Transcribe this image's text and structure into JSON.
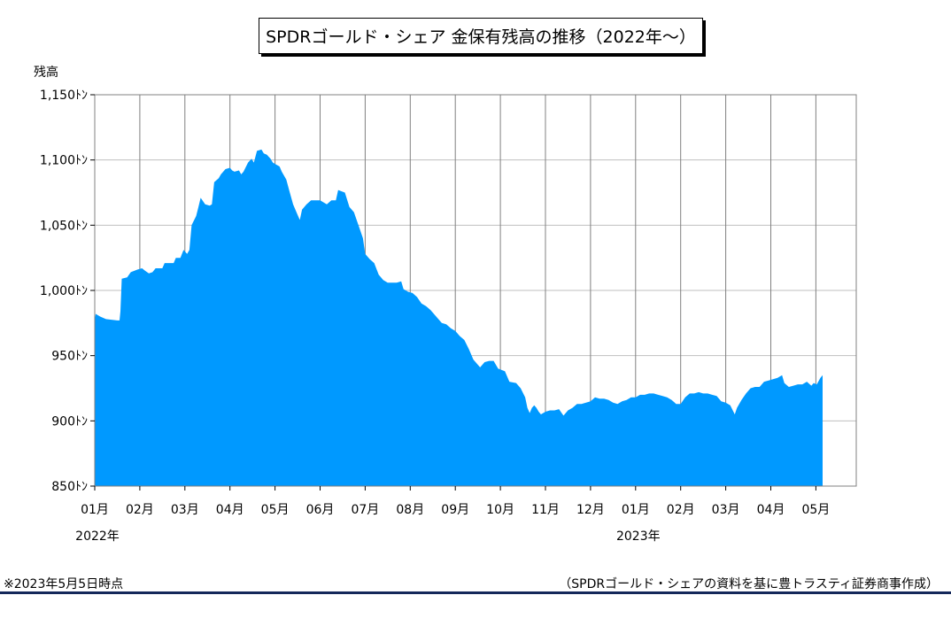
{
  "title": "SPDRゴールド・シェア 金保有残高の推移（2022年～）",
  "footnote": "※2023年5月5日時点",
  "source": "（SPDRゴールド・シェアの資料を基に豊トラスティ証券商事作成）",
  "colors": {
    "fill": "#0099ff",
    "grid": "#bfbfbf",
    "month_line": "#808080",
    "rule": "#14285a"
  },
  "chart_data": {
    "type": "area",
    "ylabel": "残高",
    "ylim": [
      850,
      1150
    ],
    "y_ticks": [
      850,
      900,
      950,
      1000,
      1050,
      1100,
      1150
    ],
    "y_tick_labels": [
      "850ﾄﾝ",
      "900ﾄﾝ",
      "950ﾄﾝ",
      "1,000ﾄﾝ",
      "1,050ﾄﾝ",
      "1,100ﾄﾝ",
      "1,150ﾄﾝ"
    ],
    "x_tick_labels": [
      "01月",
      "02月",
      "03月",
      "04月",
      "05月",
      "06月",
      "07月",
      "08月",
      "09月",
      "10月",
      "11月",
      "12月",
      "01月",
      "02月",
      "03月",
      "04月",
      "05月"
    ],
    "year_labels": [
      {
        "label": "2022年",
        "at_month": 0
      },
      {
        "label": "2023年",
        "at_month": 12
      }
    ],
    "grid": true,
    "series": [
      {
        "values": [
          [
            0.0,
            977
          ],
          [
            0.02,
            982
          ],
          [
            0.12,
            980
          ],
          [
            0.25,
            978
          ],
          [
            0.5,
            977
          ],
          [
            0.55,
            977
          ],
          [
            0.57,
            984
          ],
          [
            0.6,
            1009
          ],
          [
            0.72,
            1010
          ],
          [
            0.8,
            1014
          ],
          [
            0.95,
            1016
          ],
          [
            1.05,
            1017
          ],
          [
            1.12,
            1015
          ],
          [
            1.2,
            1013
          ],
          [
            1.28,
            1014
          ],
          [
            1.35,
            1017
          ],
          [
            1.5,
            1017
          ],
          [
            1.55,
            1021
          ],
          [
            1.75,
            1021
          ],
          [
            1.8,
            1025
          ],
          [
            1.9,
            1025
          ],
          [
            1.97,
            1031
          ],
          [
            2.05,
            1028
          ],
          [
            2.1,
            1031
          ],
          [
            2.15,
            1050
          ],
          [
            2.25,
            1057
          ],
          [
            2.3,
            1064
          ],
          [
            2.35,
            1071
          ],
          [
            2.45,
            1066
          ],
          [
            2.55,
            1065
          ],
          [
            2.6,
            1066
          ],
          [
            2.65,
            1083
          ],
          [
            2.75,
            1086
          ],
          [
            2.8,
            1089
          ],
          [
            2.9,
            1093
          ],
          [
            3.0,
            1094
          ],
          [
            3.05,
            1092
          ],
          [
            3.1,
            1091
          ],
          [
            3.2,
            1092
          ],
          [
            3.25,
            1089
          ],
          [
            3.3,
            1091
          ],
          [
            3.4,
            1098
          ],
          [
            3.48,
            1101
          ],
          [
            3.53,
            1098
          ],
          [
            3.6,
            1107
          ],
          [
            3.7,
            1108
          ],
          [
            3.75,
            1105
          ],
          [
            3.82,
            1104
          ],
          [
            3.9,
            1101
          ],
          [
            3.95,
            1098
          ],
          [
            4.0,
            1097
          ],
          [
            4.1,
            1095
          ],
          [
            4.15,
            1091
          ],
          [
            4.25,
            1085
          ],
          [
            4.32,
            1076
          ],
          [
            4.4,
            1066
          ],
          [
            4.5,
            1058
          ],
          [
            4.55,
            1054
          ],
          [
            4.6,
            1062
          ],
          [
            4.7,
            1066
          ],
          [
            4.8,
            1069
          ],
          [
            4.9,
            1069
          ],
          [
            5.0,
            1069
          ],
          [
            5.05,
            1068
          ],
          [
            5.15,
            1066
          ],
          [
            5.25,
            1069
          ],
          [
            5.35,
            1069
          ],
          [
            5.4,
            1077
          ],
          [
            5.55,
            1075
          ],
          [
            5.65,
            1064
          ],
          [
            5.75,
            1060
          ],
          [
            5.85,
            1050
          ],
          [
            5.95,
            1040
          ],
          [
            6.0,
            1028
          ],
          [
            6.1,
            1024
          ],
          [
            6.2,
            1021
          ],
          [
            6.3,
            1012
          ],
          [
            6.4,
            1008
          ],
          [
            6.5,
            1006
          ],
          [
            6.6,
            1006
          ],
          [
            6.7,
            1006
          ],
          [
            6.8,
            1007
          ],
          [
            6.85,
            1001
          ],
          [
            6.95,
            999
          ],
          [
            7.05,
            998
          ],
          [
            7.15,
            995
          ],
          [
            7.25,
            990
          ],
          [
            7.35,
            988
          ],
          [
            7.45,
            985
          ],
          [
            7.55,
            981
          ],
          [
            7.7,
            975
          ],
          [
            7.8,
            974
          ],
          [
            7.9,
            971
          ],
          [
            8.0,
            969
          ],
          [
            8.1,
            965
          ],
          [
            8.2,
            962
          ],
          [
            8.3,
            955
          ],
          [
            8.4,
            947
          ],
          [
            8.55,
            941
          ],
          [
            8.65,
            945
          ],
          [
            8.75,
            946
          ],
          [
            8.85,
            946
          ],
          [
            8.95,
            940
          ],
          [
            9.1,
            938
          ],
          [
            9.2,
            930
          ],
          [
            9.35,
            929
          ],
          [
            9.45,
            925
          ],
          [
            9.55,
            918
          ],
          [
            9.6,
            910
          ],
          [
            9.65,
            906
          ],
          [
            9.7,
            910
          ],
          [
            9.75,
            912
          ],
          [
            9.8,
            910
          ],
          [
            9.85,
            907
          ],
          [
            9.9,
            905
          ],
          [
            10.0,
            907
          ],
          [
            10.1,
            908
          ],
          [
            10.2,
            908
          ],
          [
            10.3,
            909
          ],
          [
            10.4,
            904
          ],
          [
            10.5,
            908
          ],
          [
            10.6,
            910
          ],
          [
            10.7,
            913
          ],
          [
            10.8,
            913
          ],
          [
            10.9,
            914
          ],
          [
            11.0,
            915
          ],
          [
            11.1,
            918
          ],
          [
            11.2,
            917
          ],
          [
            11.3,
            917
          ],
          [
            11.4,
            916
          ],
          [
            11.5,
            914
          ],
          [
            11.6,
            913
          ],
          [
            11.7,
            915
          ],
          [
            11.8,
            916
          ],
          [
            11.9,
            918
          ],
          [
            12.0,
            918
          ],
          [
            12.1,
            920
          ],
          [
            12.2,
            920
          ],
          [
            12.3,
            921
          ],
          [
            12.4,
            921
          ],
          [
            12.5,
            920
          ],
          [
            12.6,
            919
          ],
          [
            12.7,
            918
          ],
          [
            12.8,
            916
          ],
          [
            12.9,
            913
          ],
          [
            13.0,
            913
          ],
          [
            13.1,
            918
          ],
          [
            13.2,
            921
          ],
          [
            13.3,
            921
          ],
          [
            13.4,
            922
          ],
          [
            13.5,
            921
          ],
          [
            13.6,
            921
          ],
          [
            13.7,
            920
          ],
          [
            13.8,
            919
          ],
          [
            13.9,
            915
          ],
          [
            14.0,
            914
          ],
          [
            14.1,
            912
          ],
          [
            14.2,
            905
          ],
          [
            14.25,
            910
          ],
          [
            14.35,
            916
          ],
          [
            14.45,
            921
          ],
          [
            14.55,
            925
          ],
          [
            14.65,
            926
          ],
          [
            14.75,
            926
          ],
          [
            14.85,
            930
          ],
          [
            14.95,
            931
          ],
          [
            15.05,
            932
          ],
          [
            15.15,
            933
          ],
          [
            15.25,
            935
          ],
          [
            15.3,
            929
          ],
          [
            15.4,
            926
          ],
          [
            15.5,
            927
          ],
          [
            15.6,
            928
          ],
          [
            15.7,
            928
          ],
          [
            15.8,
            930
          ],
          [
            15.9,
            927
          ],
          [
            15.95,
            929
          ],
          [
            16.02,
            928
          ],
          [
            16.1,
            933
          ],
          [
            16.15,
            935
          ]
        ]
      }
    ]
  }
}
